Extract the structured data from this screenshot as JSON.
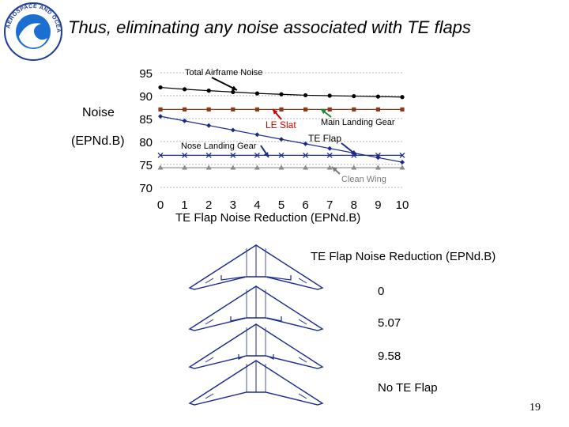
{
  "slide": {
    "title": "Thus, eliminating any noise associated with TE flaps",
    "page_number": "19",
    "logo_text": "AEROSPACE AND OCEAN ENGINEERING · VIRGINIA TECH"
  },
  "chart_data": {
    "type": "line",
    "title": "",
    "xlabel": "TE Flap Noise Reduction (EPNd.B)",
    "ylabel_line1": "Noise",
    "ylabel_line2": "(EPNd.B)",
    "xlim": [
      0,
      10
    ],
    "ylim": [
      70,
      95
    ],
    "x": [
      0,
      1,
      2,
      3,
      4,
      5,
      6,
      7,
      8,
      9,
      10
    ],
    "xticks": [
      "0",
      "1",
      "2",
      "3",
      "4",
      "5",
      "6",
      "7",
      "8",
      "9",
      "10"
    ],
    "yticks": [
      "70",
      "75",
      "80",
      "85",
      "90",
      "95"
    ],
    "series": [
      {
        "name": "Total Airframe Noise",
        "color": "#000000",
        "marker": "circle",
        "values": [
          91.8,
          91.4,
          91.1,
          90.8,
          90.5,
          90.3,
          90.1,
          90.0,
          89.9,
          89.8,
          89.7
        ]
      },
      {
        "name": "LE Slat",
        "color": "#8b3a1a",
        "marker": "square",
        "values": [
          87.0,
          87.0,
          87.0,
          87.0,
          87.0,
          87.0,
          87.0,
          87.0,
          87.0,
          87.0,
          87.0
        ]
      },
      {
        "name": "TE Flap",
        "color": "#1a2a8c",
        "marker": "diamond",
        "values": [
          85.5,
          84.5,
          83.5,
          82.5,
          81.5,
          80.5,
          79.5,
          78.5,
          77.5,
          76.5,
          75.5
        ]
      },
      {
        "name": "Nose Landing Gear",
        "color": "#1a2a8c",
        "marker": "x",
        "values": [
          77.0,
          77.0,
          77.0,
          77.0,
          77.0,
          77.0,
          77.0,
          77.0,
          77.0,
          77.0,
          77.0
        ]
      },
      {
        "name": "Clean Wing",
        "color": "#8a8a8a",
        "marker": "triangle",
        "values": [
          74.3,
          74.3,
          74.3,
          74.3,
          74.3,
          74.3,
          74.3,
          74.3,
          74.3,
          74.3,
          74.3
        ]
      }
    ],
    "annotations": [
      {
        "text": "Total Airframe Noise",
        "color": "#000000"
      },
      {
        "text": "LE Slat",
        "color": "#cc0000"
      },
      {
        "text": "Main Landing Gear",
        "color": "#000000"
      },
      {
        "text": "TE Flap",
        "color": "#000000"
      },
      {
        "text": "Nose Landing Gear",
        "color": "#000000"
      },
      {
        "text": "Clean Wing",
        "color": "#7a7a7a"
      }
    ],
    "grid": "horizontal-dotted"
  },
  "table": {
    "header": "TE Flap Noise Reduction (EPNd.B)",
    "rows": [
      {
        "value": "0"
      },
      {
        "value": "5.07"
      },
      {
        "value": "9.58"
      },
      {
        "value": "No TE Flap"
      }
    ]
  }
}
